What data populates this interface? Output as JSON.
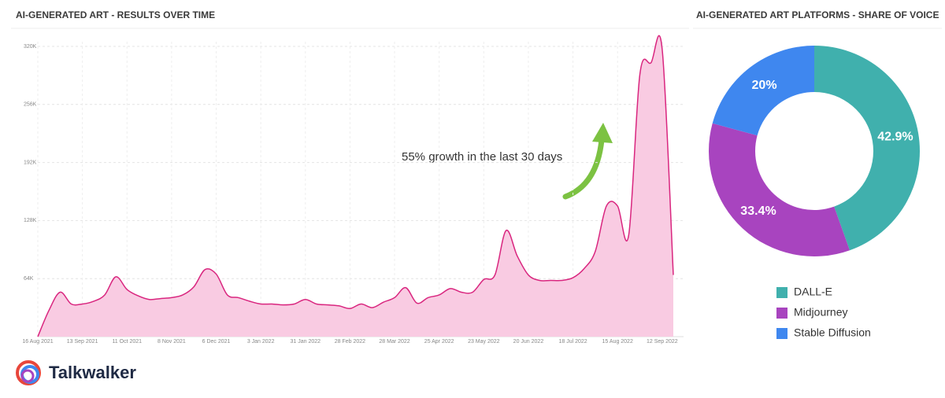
{
  "chart_data": [
    {
      "type": "area",
      "title": "AI-GENERATED ART - RESULTS OVER TIME",
      "annotation": "55% growth in the last 30 days",
      "categories": [
        "16 Aug 2021",
        null,
        null,
        null,
        "13 Sep 2021",
        null,
        null,
        null,
        "11 Oct 2021",
        null,
        null,
        null,
        "8 Nov 2021",
        null,
        null,
        null,
        "6 Dec 2021",
        null,
        null,
        null,
        "3 Jan 2022",
        null,
        null,
        null,
        "31 Jan 2022",
        null,
        null,
        null,
        "28 Feb 2022",
        null,
        null,
        null,
        "28 Mar 2022",
        null,
        null,
        null,
        "25 Apr 2022",
        null,
        null,
        null,
        "23 May 2022",
        null,
        null,
        null,
        "20 Jun 2022",
        null,
        null,
        null,
        "18 Jul 2022",
        null,
        null,
        null,
        "15 Aug 2022",
        null,
        null,
        null,
        "12 Sep 2022",
        null
      ],
      "values": [
        0,
        29000,
        49000,
        36000,
        36000,
        39000,
        46000,
        66000,
        52000,
        45000,
        41000,
        42000,
        43000,
        46000,
        55000,
        74000,
        69000,
        46000,
        43000,
        39000,
        36000,
        36000,
        35000,
        36000,
        41000,
        36000,
        35000,
        34000,
        31000,
        36000,
        32000,
        38000,
        43000,
        54000,
        37000,
        43000,
        46000,
        53000,
        49000,
        49000,
        63000,
        68000,
        117000,
        89000,
        68000,
        62000,
        62000,
        62000,
        65000,
        75000,
        94000,
        144000,
        144000,
        112000,
        289000,
        302000,
        317000,
        68000
      ],
      "color": "#d9267f",
      "fill": "#f9cbe2",
      "ylim": [
        0,
        320000
      ],
      "yticks": [
        {
          "value": 64000,
          "label": "64K"
        },
        {
          "value": 128000,
          "label": "128K"
        },
        {
          "value": 192000,
          "label": "192K"
        },
        {
          "value": 256000,
          "label": "256K"
        },
        {
          "value": 320000,
          "label": "320K"
        }
      ],
      "grid": true
    },
    {
      "type": "donut",
      "title": "AI-GENERATED ART PLATFORMS - SHARE OF VOICE",
      "categories": [
        "DALL-E",
        "Midjourney",
        "Stable Diffusion"
      ],
      "values": [
        42.9,
        33.4,
        20
      ],
      "value_labels": [
        "42.9%",
        "33.4%",
        "20%"
      ],
      "colors": [
        "#40b0ad",
        "#a844bf",
        "#3f87ef"
      ],
      "legend": "bottom"
    }
  ],
  "footer": {
    "brand": "Talkwalker"
  }
}
